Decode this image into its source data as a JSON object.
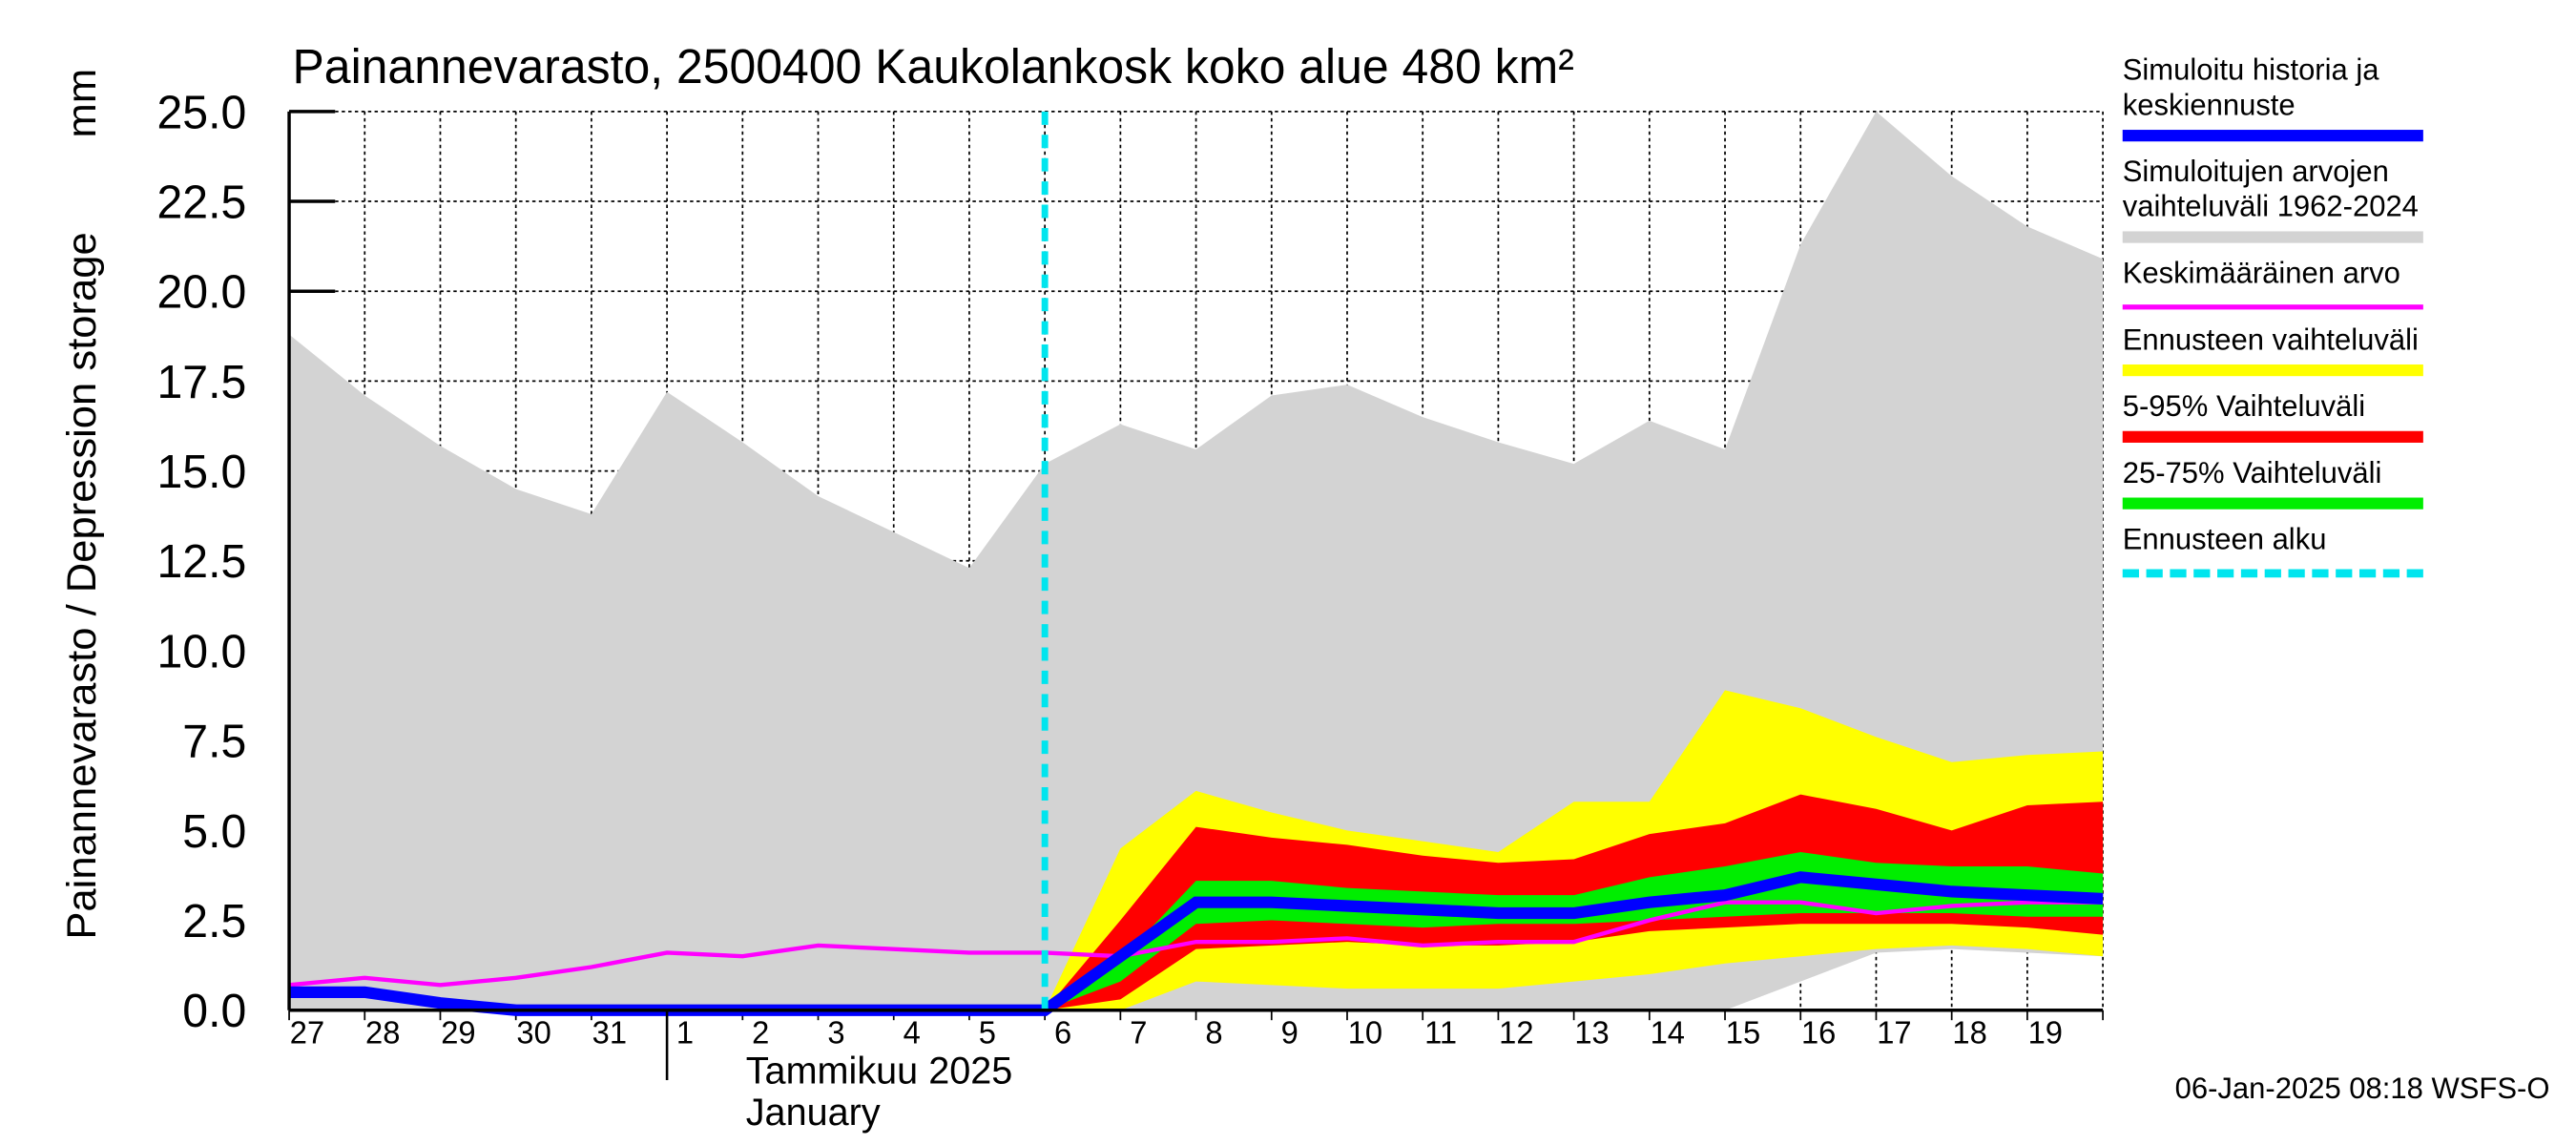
{
  "chart_data": {
    "type": "band",
    "title": "Painannevarasto, 2500400 Kaukolankosk koko alue 480 km²",
    "y_label": "Painannevarasto / Depression storage",
    "y_unit": "mm",
    "month_label_fi": "Tammikuu  2025",
    "month_label_en": "January",
    "month_start_index": 5,
    "footer": "06-Jan-2025 08:18 WSFS-O",
    "categories": [
      "27",
      "28",
      "29",
      "30",
      "31",
      "1",
      "2",
      "3",
      "4",
      "5",
      "6",
      "7",
      "8",
      "9",
      "10",
      "11",
      "12",
      "13",
      "14",
      "15",
      "16",
      "17",
      "18",
      "19",
      null
    ],
    "ylim": [
      0,
      25
    ],
    "yticks": [
      {
        "value": 0,
        "label": "0.0"
      },
      2.5,
      {
        "value": 5,
        "label": "5.0"
      },
      7.5,
      {
        "value": 10,
        "label": "10.0"
      },
      12.5,
      {
        "value": 15,
        "label": "15.0"
      },
      17.5,
      {
        "value": 20,
        "label": "20.0"
      },
      22.5,
      {
        "value": 25,
        "label": "25.0"
      }
    ],
    "grid": true,
    "series": [
      {
        "name": "Simuloitu historia ja\nkeskiennuste",
        "kind": "thick-line",
        "color": "#0000ff",
        "values": [
          0.5,
          0.5,
          0.2,
          0,
          0,
          0,
          0,
          0,
          0,
          0,
          0,
          1.5,
          3.0,
          3.0,
          2.9,
          2.8,
          2.7,
          2.7,
          3.0,
          3.2,
          3.7,
          3.5,
          3.3,
          3.2,
          3.1
        ]
      },
      {
        "name": "Simuloitujen arvojen\nvaihteluväli 1962-2024",
        "kind": "band",
        "color": "#d3d3d3",
        "values": [
          18.8,
          17.1,
          15.7,
          14.5,
          13.8,
          17.2,
          15.8,
          14.3,
          13.3,
          12.3,
          15.2,
          16.3,
          15.6,
          17.1,
          17.4,
          16.5,
          15.8,
          15.2,
          16.4,
          15.6,
          21.3,
          25.0,
          23.2,
          21.8,
          20.9
        ],
        "lower": [
          0,
          0,
          0,
          0,
          0,
          0,
          0,
          0,
          0,
          0,
          0,
          0,
          0,
          0,
          0,
          0,
          0,
          0,
          0,
          0,
          0.8,
          1.6,
          1.7,
          1.6,
          1.5
        ]
      },
      {
        "name": "Keskimääräinen arvo",
        "kind": "line",
        "color": "#ff00ff",
        "values": [
          0.7,
          0.9,
          0.7,
          0.9,
          1.2,
          1.6,
          1.5,
          1.8,
          1.7,
          1.6,
          1.6,
          1.5,
          1.9,
          1.9,
          2.0,
          1.8,
          1.9,
          1.9,
          2.5,
          3.0,
          3.0,
          2.7,
          2.9,
          3.0,
          3.0
        ]
      },
      {
        "name": "Ennusteen vaihteluväli",
        "kind": "band",
        "color": "#ffff00",
        "values": [
          null,
          null,
          null,
          null,
          null,
          null,
          null,
          null,
          null,
          null,
          0,
          4.5,
          6.1,
          5.5,
          5.0,
          4.7,
          4.4,
          5.8,
          5.8,
          8.9,
          8.4,
          7.6,
          6.9,
          7.1,
          7.2
        ],
        "lower": [
          null,
          null,
          null,
          null,
          null,
          null,
          null,
          null,
          null,
          null,
          0,
          0,
          0.8,
          0.7,
          0.6,
          0.6,
          0.6,
          0.8,
          1.0,
          1.3,
          1.5,
          1.7,
          1.8,
          1.7,
          1.5
        ]
      },
      {
        "name": "5-95% Vaihteluväli",
        "kind": "band",
        "color": "#ff0000",
        "values": [
          null,
          null,
          null,
          null,
          null,
          null,
          null,
          null,
          null,
          null,
          0,
          2.5,
          5.1,
          4.8,
          4.6,
          4.3,
          4.1,
          4.2,
          4.9,
          5.2,
          6.0,
          5.6,
          5.0,
          5.7,
          5.8
        ],
        "lower": [
          null,
          null,
          null,
          null,
          null,
          null,
          null,
          null,
          null,
          null,
          0,
          0.3,
          1.7,
          1.8,
          1.9,
          1.8,
          1.8,
          1.9,
          2.2,
          2.3,
          2.4,
          2.4,
          2.4,
          2.3,
          2.1
        ]
      },
      {
        "name": "25-75% Vaihteluväli",
        "kind": "band",
        "color": "#00ee00",
        "values": [
          null,
          null,
          null,
          null,
          null,
          null,
          null,
          null,
          null,
          null,
          0,
          1.4,
          3.6,
          3.6,
          3.4,
          3.3,
          3.2,
          3.2,
          3.7,
          4.0,
          4.4,
          4.1,
          4.0,
          4.0,
          3.8
        ],
        "lower": [
          null,
          null,
          null,
          null,
          null,
          null,
          null,
          null,
          null,
          null,
          0,
          0.8,
          2.4,
          2.5,
          2.4,
          2.3,
          2.4,
          2.4,
          2.5,
          2.6,
          2.7,
          2.7,
          2.7,
          2.6,
          2.6
        ]
      },
      {
        "name": "Ennusteen alku",
        "kind": "vline",
        "color": "#00e5ee",
        "x": 10
      }
    ]
  }
}
